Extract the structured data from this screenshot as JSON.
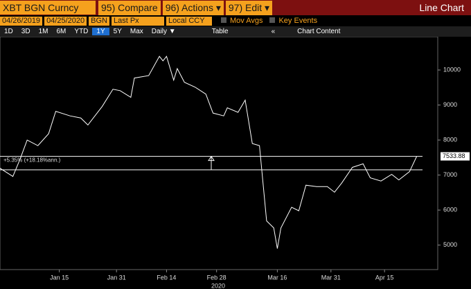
{
  "toolbar": {
    "ticker": "XBT BGN Curncy",
    "buttons": [
      "95) Compare",
      "96) Actions ▾",
      "97) Edit ▾"
    ],
    "view": "Line Chart"
  },
  "settings": {
    "start_date": "04/26/2019",
    "end_date": "04/25/2020",
    "source": "BGN",
    "field": "Last Px",
    "currency": "Local CCY",
    "options": [
      "Mov Avgs",
      "Key Events"
    ]
  },
  "ranges": {
    "periods": [
      "1D",
      "3D",
      "1M",
      "6M",
      "YTD",
      "1Y",
      "5Y",
      "Max"
    ],
    "selected": "1Y",
    "frequency": "Daily ▼",
    "table": "Table",
    "content": "Chart Content"
  },
  "chart_data": {
    "type": "line",
    "color": "#ffffff",
    "x": [
      -2,
      2,
      4,
      6,
      9,
      12,
      14,
      18,
      21,
      23,
      27,
      30,
      32,
      35,
      36,
      40,
      43,
      44,
      45,
      47,
      48,
      50,
      53,
      56,
      58,
      61,
      62,
      65,
      67,
      69,
      71,
      73,
      75,
      76,
      77,
      80,
      82,
      84,
      87,
      90,
      92,
      94,
      97,
      100,
      102,
      105,
      108,
      110,
      113,
      115
    ],
    "values": [
      7220,
      6960,
      7450,
      8000,
      7840,
      8180,
      8820,
      8690,
      8630,
      8430,
      8960,
      9450,
      9410,
      9220,
      9770,
      9840,
      10390,
      10260,
      10390,
      9710,
      10040,
      9650,
      9510,
      9310,
      8770,
      8690,
      8920,
      8790,
      9140,
      7900,
      7840,
      5690,
      5490,
      4900,
      5490,
      6080,
      5980,
      6710,
      6670,
      6670,
      6510,
      6770,
      7220,
      7320,
      6920,
      6830,
      7020,
      6860,
      7100,
      7533.88
    ],
    "last_label": "7533.88",
    "reference_lines": [
      7150,
      7533.88
    ],
    "annotation": "+5.35% (+18.18%ann.)",
    "xlim": [
      -1.6,
      120.5
    ],
    "ylim": [
      4300,
      10950
    ],
    "xticks": [
      {
        "value": 15,
        "label": "Jan 15"
      },
      {
        "value": 31,
        "label": "Jan 31"
      },
      {
        "value": 45,
        "label": "Feb 14"
      },
      {
        "value": 59,
        "label": "Feb 28"
      },
      {
        "value": 76,
        "label": "Mar 16"
      },
      {
        "value": 91,
        "label": "Mar 31"
      },
      {
        "value": 106,
        "label": "Apr 15"
      }
    ],
    "x_year": "2020",
    "yticks": [
      5000,
      6000,
      7000,
      8000,
      9000,
      10000
    ]
  }
}
